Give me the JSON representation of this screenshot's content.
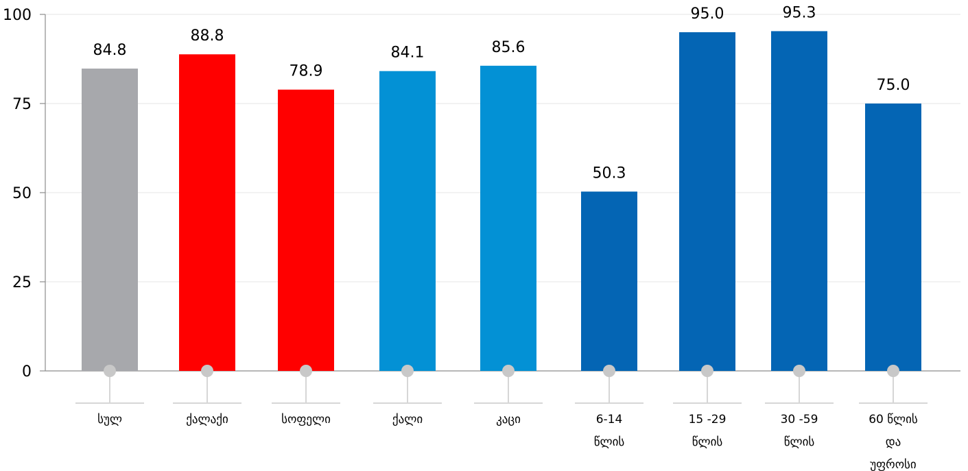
{
  "chart_data": {
    "type": "bar",
    "categories": [
      [
        "სულ"
      ],
      [
        "ქალაქი"
      ],
      [
        "სოფელი"
      ],
      [
        "ქალი"
      ],
      [
        "კაცი"
      ],
      [
        "6-14",
        "წლის"
      ],
      [
        "15 -29",
        "წლის"
      ],
      [
        "30 -59",
        "წლის"
      ],
      [
        "60 წლის",
        "და",
        "უფროსი"
      ]
    ],
    "values": [
      84.8,
      88.8,
      78.9,
      84.1,
      85.6,
      50.3,
      95.0,
      95.3,
      75.0
    ],
    "value_labels": [
      "84.8",
      "88.8",
      "78.9",
      "84.1",
      "85.6",
      "50.3",
      "95.0",
      "95.3",
      "75.0"
    ],
    "colors": [
      "#a7a8ac",
      "#ff0000",
      "#ff0000",
      "#0391d5",
      "#0391d5",
      "#0465b4",
      "#0465b4",
      "#0465b4",
      "#0465b4"
    ],
    "ylim": [
      0,
      100
    ],
    "yticks": [
      0,
      25,
      50,
      75,
      100
    ],
    "grid": true,
    "legend": "none"
  }
}
